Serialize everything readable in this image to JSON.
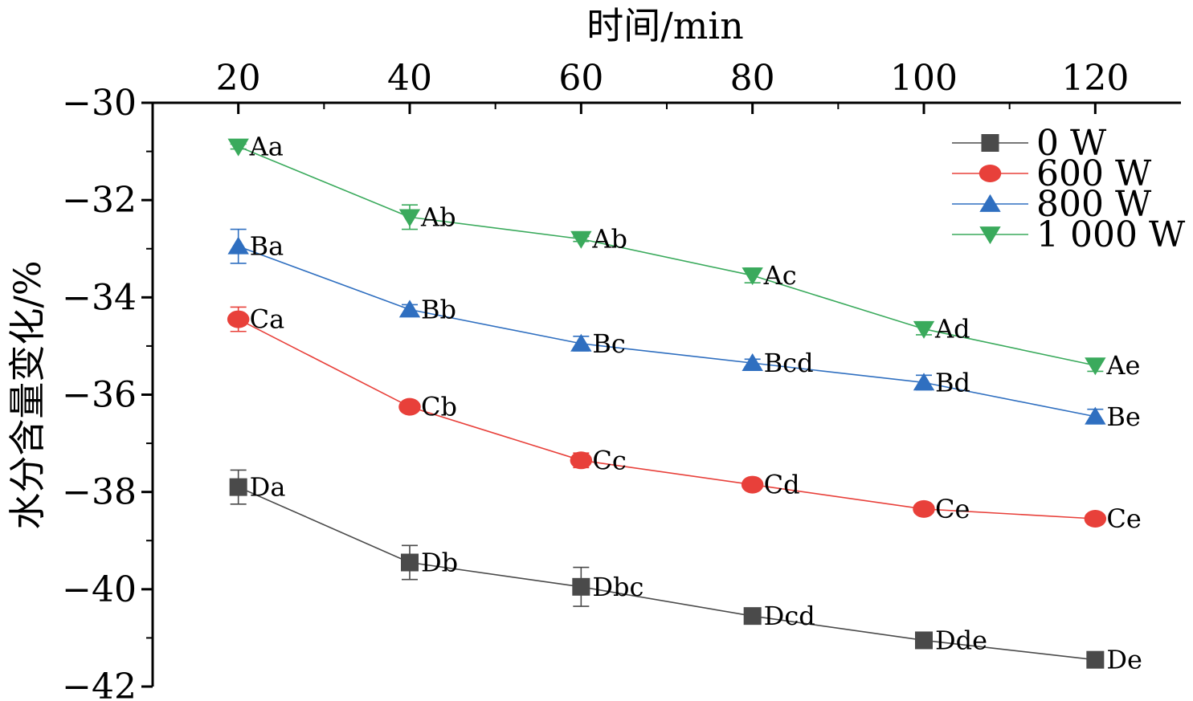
{
  "chart_data": {
    "type": "line",
    "title": "",
    "xlabel": "时间/min",
    "ylabel": "水分含量变化/%",
    "x_axis_position": "top",
    "x": [
      20,
      40,
      60,
      80,
      100,
      120
    ],
    "x_ticks": [
      "20",
      "40",
      "60",
      "80",
      "100",
      "120"
    ],
    "xlim": [
      10,
      130
    ],
    "ylim": [
      -42,
      -30
    ],
    "y_ticks": [
      "−30",
      "−32",
      "−34",
      "−36",
      "−38",
      "−40",
      "−42"
    ],
    "grid": false,
    "legend_position": "top-right",
    "series": [
      {
        "name": "0 W",
        "color": "#4a4a4a",
        "marker": "square",
        "values": [
          -37.9,
          -39.45,
          -39.95,
          -40.55,
          -41.05,
          -41.45
        ],
        "errors": [
          0.35,
          0.35,
          0.4,
          0.08,
          0.15,
          0.15
        ],
        "labels": [
          "Da",
          "Db",
          "Dbc",
          "Dcd",
          "Dde",
          "De"
        ]
      },
      {
        "name": "600 W",
        "color": "#e8403a",
        "marker": "circle",
        "values": [
          -34.45,
          -36.25,
          -37.35,
          -37.85,
          -38.35,
          -38.55
        ],
        "errors": [
          0.25,
          0.05,
          0.15,
          0.05,
          0.05,
          0.05
        ],
        "labels": [
          "Ca",
          "Cb",
          "Cc",
          "Cd",
          "Ce",
          "Ce"
        ]
      },
      {
        "name": "800 W",
        "color": "#2f6fc0",
        "marker": "triangle-up",
        "values": [
          -32.95,
          -34.25,
          -34.95,
          -35.35,
          -35.75,
          -36.45
        ],
        "errors": [
          0.35,
          0.1,
          0.15,
          0.08,
          0.15,
          0.15
        ],
        "labels": [
          "Ba",
          "Bb",
          "Bc",
          "Bcd",
          "Bd",
          "Be"
        ]
      },
      {
        "name": "1 000 W",
        "color": "#3aaa5c",
        "marker": "triangle-down",
        "values": [
          -30.9,
          -32.35,
          -32.8,
          -33.55,
          -34.65,
          -35.4
        ],
        "errors": [
          0.05,
          0.25,
          0.05,
          0.15,
          0.12,
          0.12
        ],
        "labels": [
          "Aa",
          "Ab",
          "Ab",
          "Ac",
          "Ad",
          "Ae"
        ]
      }
    ]
  }
}
